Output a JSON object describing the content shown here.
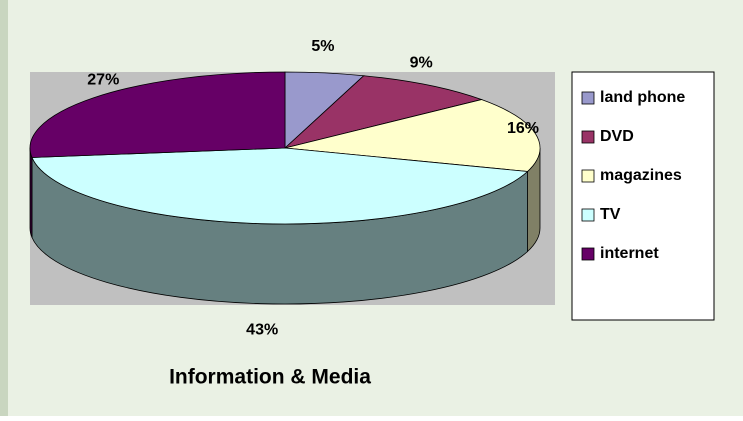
{
  "chart_data": {
    "type": "pie3d",
    "title": "Information & Media",
    "categories": [
      "land phone",
      "DVD",
      "magazines",
      "TV",
      "internet"
    ],
    "values": [
      5,
      9,
      16,
      43,
      27
    ],
    "value_labels": [
      "5%",
      "9%",
      "16%",
      "43%",
      "27%"
    ],
    "colors": [
      "#9999cc",
      "#993366",
      "#ffffcc",
      "#ccffff",
      "#660066"
    ],
    "legend": "right"
  }
}
